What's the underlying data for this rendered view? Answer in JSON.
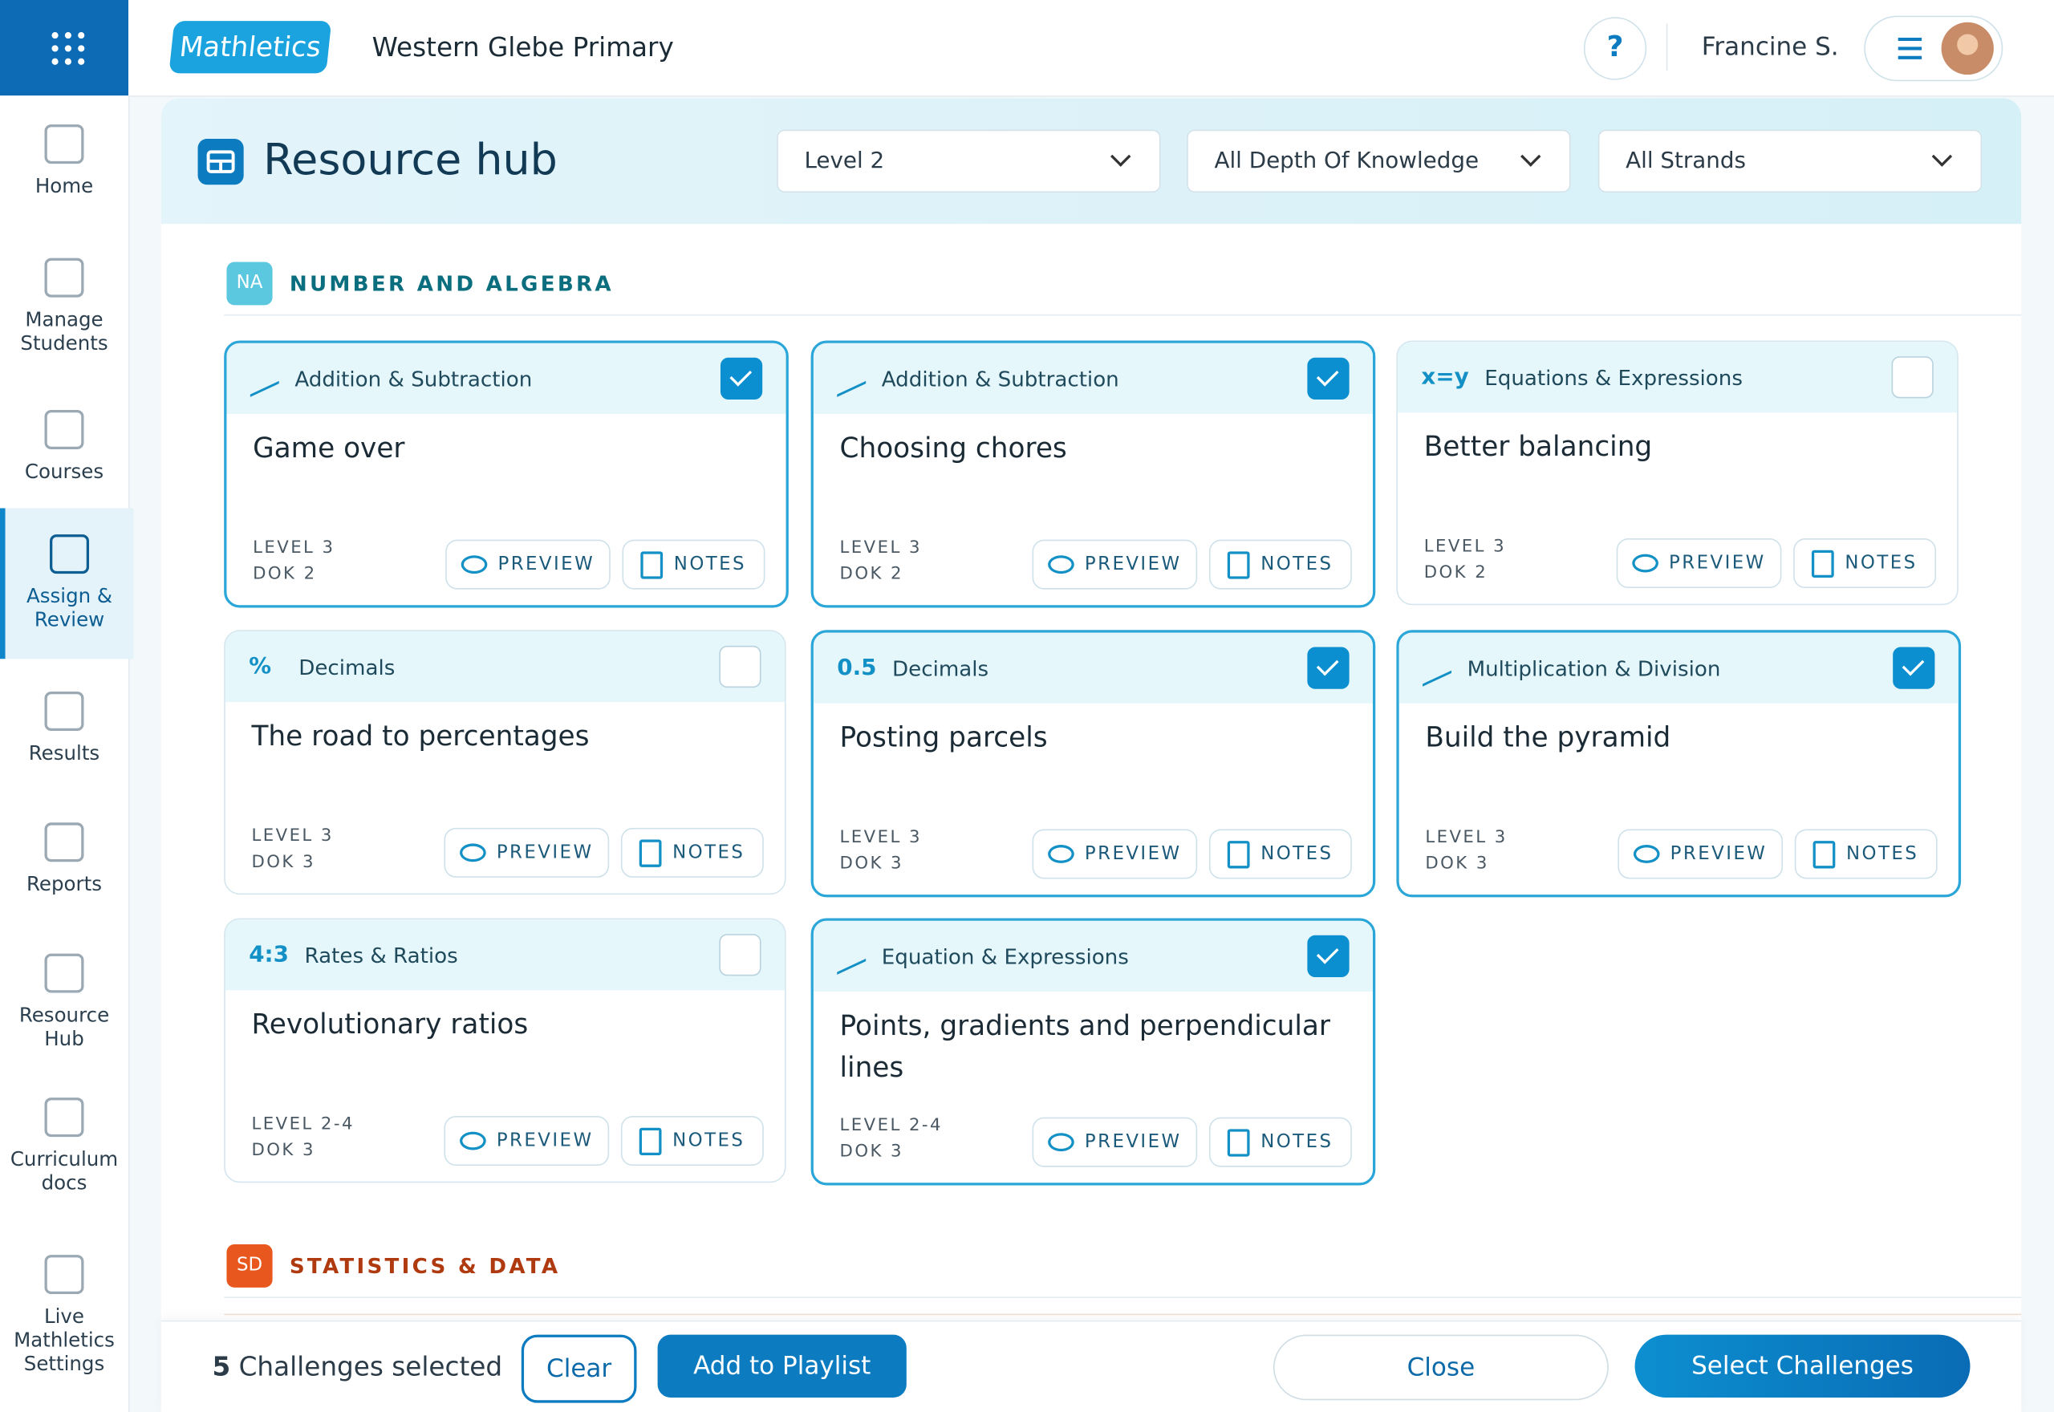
{
  "header": {
    "app_name": "Mathletics",
    "school": "Western Glebe Primary",
    "user": "Francine S."
  },
  "sidebar": {
    "items": [
      "Home",
      "Manage Students",
      "Courses",
      "Assign & Review",
      "Results",
      "Reports",
      "Resource Hub",
      "Curriculum docs",
      "Live Mathletics Settings"
    ],
    "active": 3
  },
  "page": {
    "title": "Resource hub",
    "filters": [
      "Level 2",
      "All Depth Of Knowledge",
      "All Strands"
    ]
  },
  "card_actions": [
    "PREVIEW",
    "NOTES"
  ],
  "sections": [
    {
      "badge": "NA",
      "title": "NUMBER AND ALGEBRA",
      "color": "#0b6e7e",
      "badge_color": "#5cc8e0",
      "cards": [
        {
          "topic": "Addition & Subtraction",
          "title": "Game over",
          "level": "LEVEL 3",
          "dok": "DOK 2",
          "checked": true
        },
        {
          "topic": "Addition & Subtraction",
          "title": "Choosing chores",
          "level": "LEVEL 3",
          "dok": "DOK 2",
          "checked": true
        },
        {
          "icon": "x=y",
          "topic": "Equations & Expressions",
          "title": "Better balancing",
          "level": "LEVEL 3",
          "dok": "DOK 2",
          "checked": false
        },
        {
          "icon": "%",
          "topic": "Decimals",
          "title": "The road to percentages",
          "level": "LEVEL 3",
          "dok": "DOK 3",
          "checked": false
        },
        {
          "icon": "0.5",
          "topic": "Decimals",
          "title": "Posting parcels",
          "level": "LEVEL 3",
          "dok": "DOK 3",
          "checked": true
        },
        {
          "topic": "Multiplication & Division",
          "title": "Build the pyramid",
          "level": "LEVEL 3",
          "dok": "DOK 3",
          "checked": true
        },
        {
          "icon": "4:3",
          "topic": "Rates & Ratios",
          "title": "Revolutionary ratios",
          "level": "LEVEL 2-4",
          "dok": "DOK 3",
          "checked": false
        },
        {
          "topic": "Equation & Expressions",
          "title": "Points, gradients and perpendicular lines",
          "level": "LEVEL 2-4",
          "dok": "DOK 3",
          "checked": true
        }
      ]
    },
    {
      "badge": "SD",
      "title": "STATISTICS & DATA",
      "color": "#b03a10",
      "badge_color": "#e8571e",
      "cards": []
    }
  ],
  "footer": {
    "count": 5,
    "count_text": "Challenges selected",
    "buttons": [
      "Clear",
      "Add to Playlist",
      "Close",
      "Select Challenges"
    ]
  }
}
